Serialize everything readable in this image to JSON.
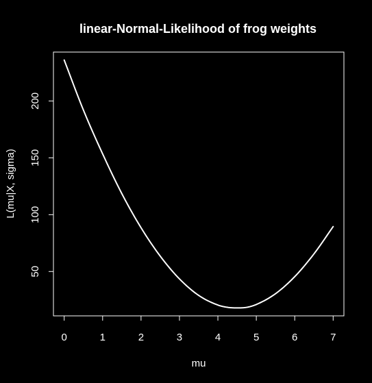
{
  "chart_data": {
    "type": "line",
    "title": "linear-Normal-Likelihood of frog weights",
    "xlabel": "mu",
    "ylabel": "L(mu|X, sigma)",
    "xlim": [
      -0.28,
      7.28
    ],
    "ylim": [
      11,
      243
    ],
    "xticks": [
      0,
      1,
      2,
      3,
      4,
      5,
      6,
      7
    ],
    "yticks": [
      50,
      100,
      150,
      200
    ],
    "grid": false,
    "legend": "none",
    "colors": {
      "background": "#000000",
      "foreground": "#ffffff",
      "line": "#ffffff"
    },
    "series": [
      {
        "x": [
          0.0,
          0.5,
          1.0,
          1.5,
          2.0,
          2.5,
          3.0,
          3.5,
          4.0,
          4.25,
          4.5,
          4.75,
          5.0,
          5.5,
          6.0,
          6.5,
          7.0
        ],
        "y": [
          236.0,
          192.0,
          153.5,
          118.5,
          88.5,
          63.5,
          43.5,
          29.0,
          20.5,
          18.5,
          18.0,
          18.5,
          21.0,
          30.5,
          45.5,
          65.5,
          89.5
        ]
      }
    ]
  }
}
